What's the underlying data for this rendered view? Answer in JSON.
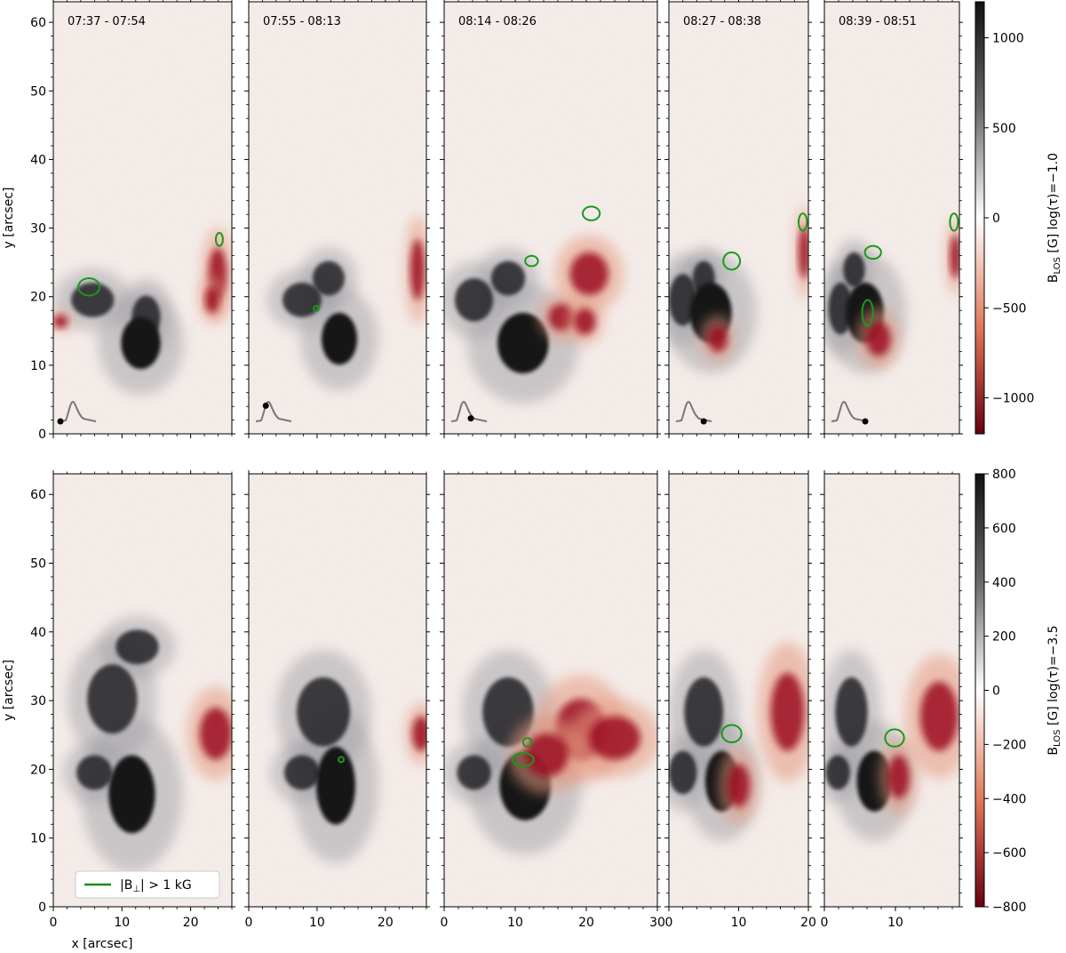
{
  "chart_data": [
    {
      "type": "heatmap",
      "row": "top",
      "panels": [
        {
          "time_range": "07:37 - 07:54",
          "x_ticks": [],
          "marker_phase": 0.0
        },
        {
          "time_range": "07:55 - 08:13",
          "x_ticks": [],
          "marker_phase": 0.28
        },
        {
          "time_range": "08:14 - 08:26",
          "x_ticks": [],
          "marker_phase": 0.55
        },
        {
          "time_range": "08:27 - 08:38",
          "x_ticks": [],
          "marker_phase": 0.78
        },
        {
          "time_range": "08:39 - 08:51",
          "x_ticks": [],
          "marker_phase": 0.95
        }
      ],
      "ylabel": "y [arcsec]",
      "y_ticks": [
        "0",
        "10",
        "20",
        "30",
        "40",
        "50",
        "60"
      ],
      "ylim": [
        0,
        63
      ],
      "colorbar": {
        "label_parts": [
          "B",
          "LOS",
          " [G] log(τ)=−1.0"
        ],
        "range": [
          -1200,
          1200
        ],
        "ticks": [
          "1000",
          "500",
          "0",
          "−500",
          "−1000"
        ],
        "tick_values": [
          1000,
          500,
          0,
          -500,
          -1000
        ],
        "colors": {
          "positive": "#1a1a1a",
          "zero": "#ffffff",
          "negative": "#7a0010"
        }
      }
    },
    {
      "type": "heatmap",
      "row": "bottom",
      "panels": [
        {
          "x_ticks": [
            "0",
            "10",
            "20"
          ],
          "x_tick_values": [
            0,
            10,
            20
          ],
          "xlim": [
            0,
            26
          ]
        },
        {
          "x_ticks": [
            "0",
            "10",
            "20"
          ],
          "x_tick_values": [
            0,
            10,
            20
          ],
          "xlim": [
            0,
            26
          ]
        },
        {
          "x_ticks": [
            "0",
            "10",
            "20",
            "30"
          ],
          "x_tick_values": [
            0,
            10,
            20,
            30
          ],
          "xlim": [
            0,
            30
          ]
        },
        {
          "x_ticks": [
            "0",
            "10",
            "20"
          ],
          "x_tick_values": [
            0,
            10,
            20
          ],
          "xlim": [
            0,
            20
          ]
        },
        {
          "x_ticks": [
            "0",
            "10"
          ],
          "x_tick_values": [
            0,
            10
          ],
          "xlim": [
            0,
            19
          ]
        }
      ],
      "xlabel": "x [arcsec]",
      "ylabel": "y [arcsec]",
      "y_ticks": [
        "0",
        "10",
        "20",
        "30",
        "40",
        "50",
        "60"
      ],
      "ylim": [
        0,
        63
      ],
      "legend": {
        "parts": [
          "|B",
          "⊥",
          "| > 1 kG"
        ],
        "color": "#1a8a1a"
      },
      "colorbar": {
        "label_parts": [
          "B",
          "LOS",
          " [G] log(τ)=−3.5"
        ],
        "range": [
          -800,
          800
        ],
        "ticks": [
          "800",
          "600",
          "400",
          "200",
          "0",
          "−200",
          "−400",
          "−600",
          "−800"
        ],
        "tick_values": [
          800,
          600,
          400,
          200,
          0,
          -200,
          -400,
          -600,
          -800
        ],
        "colors": {
          "positive": "#1a1a1a",
          "zero": "#ffffff",
          "negative": "#7a0010"
        }
      }
    }
  ]
}
